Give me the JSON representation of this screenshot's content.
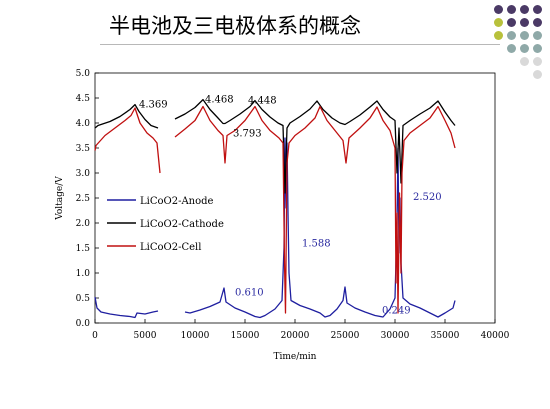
{
  "title": "半电池及三电极体系的概念",
  "dot_colors": [
    "#4b3a66",
    "#b8c13c",
    "#8fa9a8",
    "#d9d9d9"
  ],
  "chart_data": {
    "type": "line",
    "xlabel": "Time/min",
    "ylabel": "Voltage/V",
    "xlim": [
      0,
      40000
    ],
    "ylim": [
      0,
      5
    ],
    "xticks": [
      "0",
      "5000",
      "10000",
      "15000",
      "20000",
      "25000",
      "30000",
      "35000",
      "40000"
    ],
    "yticks": [
      "0.0",
      "0.5",
      "1.0",
      "1.5",
      "2.0",
      "2.5",
      "3.0",
      "3.5",
      "4.0",
      "4.5",
      "5.0"
    ],
    "grid": false,
    "legend_position": "center-left",
    "series": [
      {
        "name": "LiCoO2-Anode",
        "color": "#1f1fa0",
        "segments": [
          [
            [
              0,
              0.52
            ],
            [
              200,
              0.3
            ],
            [
              600,
              0.22
            ],
            [
              1500,
              0.18
            ],
            [
              2500,
              0.15
            ],
            [
              3500,
              0.13
            ],
            [
              4000,
              0.11
            ],
            [
              4200,
              0.2
            ],
            [
              5000,
              0.18
            ],
            [
              5800,
              0.22
            ],
            [
              6300,
              0.24
            ]
          ],
          [
            [
              9000,
              0.22
            ],
            [
              9500,
              0.2
            ],
            [
              10500,
              0.26
            ],
            [
              11500,
              0.33
            ],
            [
              12500,
              0.42
            ],
            [
              12900,
              0.7
            ],
            [
              13100,
              0.42
            ],
            [
              14000,
              0.3
            ],
            [
              15000,
              0.22
            ],
            [
              16000,
              0.13
            ],
            [
              16500,
              0.11
            ],
            [
              17000,
              0.15
            ],
            [
              18000,
              0.28
            ],
            [
              18700,
              0.45
            ],
            [
              18900,
              1.5
            ],
            [
              19000,
              3.7
            ],
            [
              19100,
              2.3
            ],
            [
              19200,
              3.6
            ],
            [
              19300,
              2.2
            ],
            [
              19400,
              1.0
            ],
            [
              19600,
              0.45
            ],
            [
              20500,
              0.35
            ],
            [
              21500,
              0.28
            ],
            [
              22500,
              0.2
            ],
            [
              23000,
              0.12
            ],
            [
              23500,
              0.15
            ],
            [
              24200,
              0.28
            ],
            [
              24800,
              0.45
            ],
            [
              25000,
              0.72
            ],
            [
              25200,
              0.4
            ],
            [
              26000,
              0.3
            ],
            [
              27000,
              0.22
            ],
            [
              28000,
              0.15
            ],
            [
              28800,
              0.12
            ],
            [
              29500,
              0.28
            ],
            [
              30000,
              0.5
            ],
            [
              30200,
              2.0
            ],
            [
              30300,
              3.5
            ],
            [
              30400,
              1.4
            ],
            [
              30500,
              2.5
            ],
            [
              30600,
              1.2
            ],
            [
              30800,
              0.5
            ],
            [
              31500,
              0.38
            ],
            [
              32500,
              0.3
            ],
            [
              33500,
              0.2
            ],
            [
              34300,
              0.12
            ],
            [
              35000,
              0.2
            ],
            [
              35800,
              0.3
            ],
            [
              36000,
              0.45
            ]
          ]
        ]
      },
      {
        "name": "LiCoO2-Cathode",
        "color": "#000000",
        "segments": [
          [
            [
              0,
              3.9
            ],
            [
              300,
              3.95
            ],
            [
              1500,
              4.03
            ],
            [
              2500,
              4.13
            ],
            [
              3500,
              4.27
            ],
            [
              4000,
              4.369
            ],
            [
              4400,
              4.23
            ],
            [
              5000,
              4.07
            ],
            [
              5600,
              3.95
            ],
            [
              6300,
              3.9
            ]
          ],
          [
            [
              8000,
              4.08
            ],
            [
              9000,
              4.18
            ],
            [
              10000,
              4.31
            ],
            [
              10800,
              4.468
            ],
            [
              11500,
              4.27
            ],
            [
              12300,
              4.1
            ],
            [
              12800,
              3.99
            ],
            [
              13000,
              3.99
            ],
            [
              13500,
              4.05
            ],
            [
              14500,
              4.18
            ],
            [
              15500,
              4.33
            ],
            [
              16000,
              4.448
            ],
            [
              16700,
              4.27
            ],
            [
              17500,
              4.12
            ],
            [
              18300,
              4.0
            ],
            [
              18800,
              3.95
            ],
            [
              19000,
              2.6
            ],
            [
              19200,
              3.9
            ],
            [
              19500,
              4.0
            ],
            [
              20500,
              4.13
            ],
            [
              21500,
              4.28
            ],
            [
              22200,
              4.44
            ],
            [
              22800,
              4.27
            ],
            [
              23700,
              4.1
            ],
            [
              24500,
              4.0
            ],
            [
              25000,
              3.97
            ],
            [
              25500,
              4.03
            ],
            [
              26500,
              4.16
            ],
            [
              27500,
              4.32
            ],
            [
              28200,
              4.44
            ],
            [
              28800,
              4.27
            ],
            [
              29500,
              4.12
            ],
            [
              30000,
              4.05
            ],
            [
              30200,
              3.0
            ],
            [
              30400,
              3.9
            ],
            [
              30600,
              2.8
            ],
            [
              30800,
              3.95
            ],
            [
              31500,
              4.05
            ],
            [
              32500,
              4.18
            ],
            [
              33500,
              4.3
            ],
            [
              34300,
              4.44
            ],
            [
              35000,
              4.22
            ],
            [
              35600,
              4.05
            ],
            [
              36000,
              3.95
            ]
          ]
        ]
      },
      {
        "name": "LiCoO2-Cell",
        "color": "#c01010",
        "segments": [
          [
            [
              0,
              3.45
            ],
            [
              100,
              3.55
            ],
            [
              1000,
              3.75
            ],
            [
              2000,
              3.9
            ],
            [
              3000,
              4.05
            ],
            [
              3600,
              4.15
            ],
            [
              4000,
              4.3
            ],
            [
              4500,
              4.0
            ],
            [
              5200,
              3.8
            ],
            [
              5800,
              3.7
            ],
            [
              6200,
              3.6
            ],
            [
              6500,
              3.0
            ]
          ],
          [
            [
              8000,
              3.72
            ],
            [
              9000,
              3.88
            ],
            [
              10000,
              4.05
            ],
            [
              10800,
              4.33
            ],
            [
              11500,
              4.05
            ],
            [
              12300,
              3.85
            ],
            [
              12800,
              3.75
            ],
            [
              13000,
              3.2
            ],
            [
              13200,
              3.75
            ],
            [
              14000,
              3.85
            ],
            [
              15000,
              4.05
            ],
            [
              16000,
              4.33
            ],
            [
              16700,
              4.05
            ],
            [
              17500,
              3.85
            ],
            [
              18400,
              3.7
            ],
            [
              18800,
              3.6
            ],
            [
              18950,
              1.2
            ],
            [
              19050,
              0.2
            ],
            [
              19200,
              3.2
            ],
            [
              19400,
              3.6
            ],
            [
              20000,
              3.75
            ],
            [
              21000,
              3.9
            ],
            [
              22000,
              4.1
            ],
            [
              22500,
              4.33
            ],
            [
              23200,
              4.05
            ],
            [
              24000,
              3.85
            ],
            [
              24800,
              3.65
            ],
            [
              25100,
              3.2
            ],
            [
              25400,
              3.7
            ],
            [
              26500,
              3.9
            ],
            [
              27500,
              4.1
            ],
            [
              28200,
              4.32
            ],
            [
              28800,
              4.05
            ],
            [
              29500,
              3.85
            ],
            [
              30000,
              3.5
            ],
            [
              30100,
              0.8
            ],
            [
              30200,
              2.2
            ],
            [
              30300,
              0.2
            ],
            [
              30450,
              2.6
            ],
            [
              30600,
              1.0
            ],
            [
              30700,
              3.0
            ],
            [
              30900,
              3.65
            ],
            [
              31500,
              3.8
            ],
            [
              32500,
              3.95
            ],
            [
              33500,
              4.1
            ],
            [
              34300,
              4.33
            ],
            [
              35000,
              4.05
            ],
            [
              35600,
              3.8
            ],
            [
              36000,
              3.5
            ]
          ]
        ]
      }
    ],
    "annotations": [
      {
        "text": "4.369",
        "x": 4400,
        "y": 4.369,
        "color": "#000000"
      },
      {
        "text": "4.468",
        "x": 11000,
        "y": 4.468,
        "color": "#000000"
      },
      {
        "text": "4.448",
        "x": 15300,
        "y": 4.448,
        "color": "#000000"
      },
      {
        "text": "3.793",
        "x": 13800,
        "y": 3.793,
        "color": "#000000"
      },
      {
        "text": "0.610",
        "x": 14000,
        "y": 0.61,
        "color": "#2a2aa0"
      },
      {
        "text": "1.588",
        "x": 20700,
        "y": 1.588,
        "color": "#2a2aa0"
      },
      {
        "text": "0.249",
        "x": 28700,
        "y": 0.249,
        "color": "#2a2aa0"
      },
      {
        "text": "2.520",
        "x": 31800,
        "y": 2.52,
        "color": "#2a2aa0"
      }
    ]
  }
}
